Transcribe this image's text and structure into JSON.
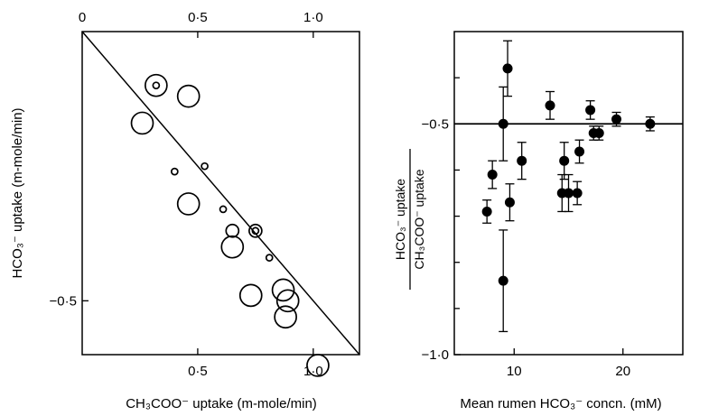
{
  "chart_data": [
    {
      "type": "scatter",
      "title": "",
      "x_axis": {
        "label": "CH₃COO⁻ uptake (m-mole/min)",
        "range": [
          0,
          1.2
        ],
        "ticks_bottom": [
          {
            "value": 0.5,
            "label": "0·5"
          },
          {
            "value": 1.0,
            "label": "1·0"
          }
        ],
        "ticks_top": [
          {
            "value": 0,
            "label": "0"
          },
          {
            "value": 0.5,
            "label": "0·5"
          },
          {
            "value": 1.0,
            "label": "1·0"
          }
        ]
      },
      "y_axis": {
        "label": "HCO₃⁻ uptake (m-mole/min)",
        "range": [
          -0.6,
          0
        ],
        "ticks": [
          {
            "value": -0.5,
            "label": "−0·5"
          }
        ]
      },
      "line": {
        "x": [
          0,
          1.2
        ],
        "y": [
          0,
          -0.6
        ]
      },
      "marker_sizes": [
        "small",
        "medium",
        "large"
      ],
      "points": [
        {
          "x": 0.32,
          "y": -0.1,
          "size": "large"
        },
        {
          "x": 0.32,
          "y": -0.1,
          "size": "small"
        },
        {
          "x": 0.46,
          "y": -0.12,
          "size": "large"
        },
        {
          "x": 0.26,
          "y": -0.17,
          "size": "large"
        },
        {
          "x": 0.4,
          "y": -0.26,
          "size": "small"
        },
        {
          "x": 0.53,
          "y": -0.25,
          "size": "small"
        },
        {
          "x": 0.46,
          "y": -0.32,
          "size": "large"
        },
        {
          "x": 0.61,
          "y": -0.33,
          "size": "small"
        },
        {
          "x": 0.65,
          "y": -0.37,
          "size": "medium"
        },
        {
          "x": 0.65,
          "y": -0.4,
          "size": "large"
        },
        {
          "x": 0.75,
          "y": -0.37,
          "size": "medium"
        },
        {
          "x": 0.75,
          "y": -0.37,
          "size": "small"
        },
        {
          "x": 0.81,
          "y": -0.42,
          "size": "small"
        },
        {
          "x": 0.73,
          "y": -0.49,
          "size": "large"
        },
        {
          "x": 0.87,
          "y": -0.48,
          "size": "large"
        },
        {
          "x": 0.89,
          "y": -0.5,
          "size": "large"
        },
        {
          "x": 0.88,
          "y": -0.53,
          "size": "large"
        },
        {
          "x": 1.02,
          "y": -0.62,
          "size": "large"
        }
      ]
    },
    {
      "type": "scatter",
      "title": "",
      "x_axis": {
        "label": "Mean rumen HCO₃⁻ concn. (mM)",
        "range": [
          4.5,
          25.5
        ],
        "ticks": [
          {
            "value": 10,
            "label": "10"
          },
          {
            "value": 20,
            "label": "20"
          }
        ]
      },
      "y_axis": {
        "label_numerator": "HCO₃⁻ uptake",
        "label_denominator": "CH₃COO⁻ uptake",
        "range": [
          -1.0,
          -0.3
        ],
        "ticks": [
          {
            "value": -0.5,
            "label": "−0·5"
          },
          {
            "value": -1.0,
            "label": "−1·0"
          }
        ],
        "minor_ticks": [
          -0.4,
          -0.6,
          -0.7,
          -0.8,
          -0.9
        ]
      },
      "reference_line": {
        "y": -0.5
      },
      "points": [
        {
          "x": 7.5,
          "y": -0.69,
          "err": 0.025
        },
        {
          "x": 8.0,
          "y": -0.61,
          "err": 0.03
        },
        {
          "x": 9.0,
          "y": -0.5,
          "err": 0.08
        },
        {
          "x": 9.0,
          "y": -0.84,
          "err": 0.11
        },
        {
          "x": 9.4,
          "y": -0.38,
          "err": 0.06
        },
        {
          "x": 9.6,
          "y": -0.67,
          "err": 0.04
        },
        {
          "x": 10.7,
          "y": -0.58,
          "err": 0.04
        },
        {
          "x": 13.3,
          "y": -0.46,
          "err": 0.03
        },
        {
          "x": 14.4,
          "y": -0.65,
          "err": 0.04
        },
        {
          "x": 14.6,
          "y": -0.58,
          "err": 0.04
        },
        {
          "x": 15.0,
          "y": -0.65,
          "err": 0.04
        },
        {
          "x": 15.8,
          "y": -0.65,
          "err": 0.025
        },
        {
          "x": 16.0,
          "y": -0.56,
          "err": 0.025
        },
        {
          "x": 17.0,
          "y": -0.47,
          "err": 0.02
        },
        {
          "x": 17.3,
          "y": -0.52,
          "err": 0.015
        },
        {
          "x": 17.8,
          "y": -0.52,
          "err": 0.015
        },
        {
          "x": 19.4,
          "y": -0.49,
          "err": 0.015
        },
        {
          "x": 22.5,
          "y": -0.5,
          "err": 0.015
        }
      ]
    }
  ]
}
